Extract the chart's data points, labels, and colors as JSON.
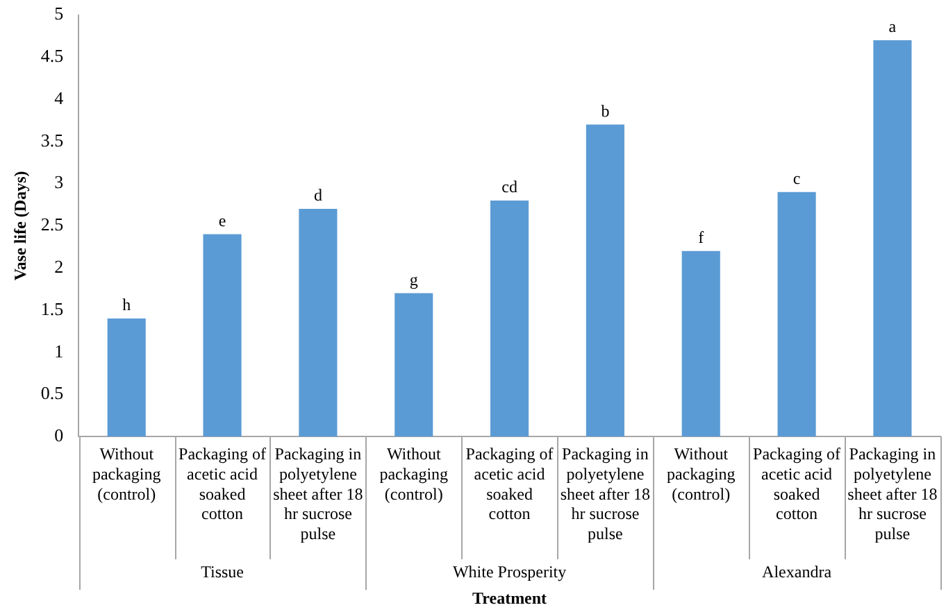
{
  "chart_data": {
    "type": "bar",
    "xlabel": "Treatment",
    "ylabel": "Vase life (Days)",
    "categories": [
      "Without packaging (control)",
      "Packaging of acetic acid soaked cotton",
      "Packaging in polyetylene sheet after 18 hr sucrose pulse",
      "Without packaging (control)",
      "Packaging of acetic acid soaked cotton",
      "Packaging in polyetylene sheet after 18 hr sucrose pulse",
      "Without packaging (control)",
      "Packaging of acetic acid soaked cotton",
      "Packaging in polyetylene sheet after 18 hr sucrose pulse"
    ],
    "values": [
      1.4,
      2.4,
      2.7,
      1.7,
      2.8,
      3.7,
      2.2,
      2.9,
      4.7
    ],
    "value_labels": [
      "h",
      "e",
      "d",
      "g",
      "cd",
      "b",
      "f",
      "c",
      "a"
    ],
    "color": "#5b9bd5",
    "ylim": [
      0,
      5
    ],
    "yticks": [
      0,
      0.5,
      1,
      1.5,
      2,
      2.5,
      3,
      3.5,
      4,
      4.5,
      5
    ],
    "grid": false,
    "legend": false,
    "annotations": [
      "Tissue",
      "White Prosperity",
      "Alexandra"
    ]
  }
}
